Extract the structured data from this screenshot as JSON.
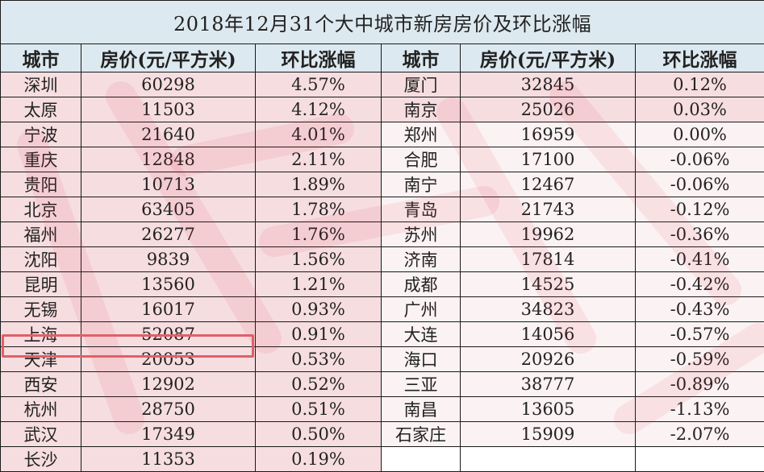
{
  "title": "2018年12月31个大中城市新房房价及环比涨幅",
  "headers": [
    "城市",
    "房价(元/平方米)",
    "环比涨幅",
    "城市",
    "房价(元/平方米)",
    "环比涨幅"
  ],
  "highlighted_city": "天津",
  "highlight_color": "#e06068",
  "left": [
    {
      "city": "深圳",
      "price": "60298",
      "change": "4.57%"
    },
    {
      "city": "太原",
      "price": "11503",
      "change": "4.12%"
    },
    {
      "city": "宁波",
      "price": "21640",
      "change": "4.01%"
    },
    {
      "city": "重庆",
      "price": "12848",
      "change": "2.11%"
    },
    {
      "city": "贵阳",
      "price": "10713",
      "change": "1.89%"
    },
    {
      "city": "北京",
      "price": "63405",
      "change": "1.78%"
    },
    {
      "city": "福州",
      "price": "26277",
      "change": "1.76%"
    },
    {
      "city": "沈阳",
      "price": "9839",
      "change": "1.56%"
    },
    {
      "city": "昆明",
      "price": "13560",
      "change": "1.21%"
    },
    {
      "city": "无锡",
      "price": "16017",
      "change": "0.93%"
    },
    {
      "city": "上海",
      "price": "52087",
      "change": "0.91%"
    },
    {
      "city": "天津",
      "price": "20053",
      "change": "0.53%"
    },
    {
      "city": "西安",
      "price": "12902",
      "change": "0.52%"
    },
    {
      "city": "杭州",
      "price": "28750",
      "change": "0.51%"
    },
    {
      "city": "武汉",
      "price": "17349",
      "change": "0.50%"
    },
    {
      "city": "长沙",
      "price": "11353",
      "change": "0.19%"
    }
  ],
  "right": [
    {
      "city": "厦门",
      "price": "32845",
      "change": "0.12%"
    },
    {
      "city": "南京",
      "price": "25026",
      "change": "0.03%"
    },
    {
      "city": "郑州",
      "price": "16959",
      "change": "0.00%"
    },
    {
      "city": "合肥",
      "price": "17100",
      "change": "-0.06%"
    },
    {
      "city": "南宁",
      "price": "12467",
      "change": "-0.06%"
    },
    {
      "city": "青岛",
      "price": "21743",
      "change": "-0.12%"
    },
    {
      "city": "苏州",
      "price": "19962",
      "change": "-0.36%"
    },
    {
      "city": "济南",
      "price": "17814",
      "change": "-0.41%"
    },
    {
      "city": "成都",
      "price": "14525",
      "change": "-0.42%"
    },
    {
      "city": "广州",
      "price": "34823",
      "change": "-0.43%"
    },
    {
      "city": "大连",
      "price": "14056",
      "change": "-0.57%"
    },
    {
      "city": "海口",
      "price": "20926",
      "change": "-0.59%"
    },
    {
      "city": "三亚",
      "price": "38777",
      "change": "-0.89%"
    },
    {
      "city": "南昌",
      "price": "13605",
      "change": "-1.13%"
    },
    {
      "city": "石家庄",
      "price": "15909",
      "change": "-2.07%"
    },
    {
      "city": "",
      "price": "",
      "change": ""
    }
  ],
  "colors": {
    "header_bg": "#dde9f0",
    "positive_bg": "#f6dde0",
    "neutral_bg": "#fbf2f3",
    "grid": "#1a1a1a"
  }
}
